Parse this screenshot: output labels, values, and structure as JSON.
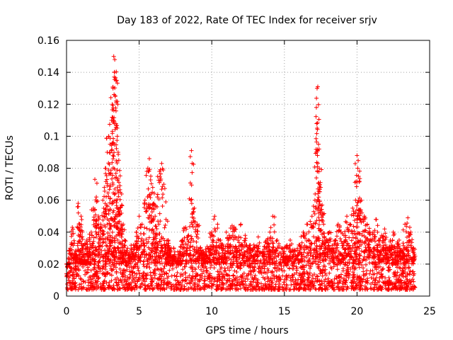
{
  "chart_data": {
    "type": "scatter",
    "title": "Day 183 of 2022, Rate Of TEC Index for receiver srjv",
    "xlabel": "GPS time / hours",
    "ylabel": "ROTI / TECUs",
    "xlim": [
      0,
      25
    ],
    "ylim": [
      0,
      0.16
    ],
    "xticks": [
      0,
      5,
      10,
      15,
      20,
      25
    ],
    "xtick_labels": [
      "0",
      "5",
      "10",
      "15",
      "20",
      "25"
    ],
    "yticks": [
      0,
      0.02,
      0.04,
      0.06,
      0.08,
      0.1,
      0.12,
      0.14,
      0.16
    ],
    "ytick_labels": [
      "0",
      "0.02",
      "0.04",
      "0.06",
      "0.08",
      "0.1",
      "0.12",
      "0.14",
      "0.16"
    ],
    "grid": true,
    "marker": "+",
    "series_color": "#ff0000",
    "series": [
      {
        "name": "ROTI",
        "x": [
          0.0,
          0.1,
          0.25,
          0.4,
          0.6,
          0.8,
          0.9,
          1.0,
          1.1,
          1.25,
          1.4,
          1.55,
          1.7,
          1.85,
          1.95,
          2.05,
          2.2,
          2.35,
          2.5,
          2.6,
          2.7,
          2.8,
          2.9,
          3.0,
          3.05,
          3.1,
          3.15,
          3.2,
          3.25,
          3.3,
          3.32,
          3.35,
          3.4,
          3.45,
          3.5,
          3.55,
          3.6,
          3.7,
          3.8,
          3.9,
          4.0,
          4.2,
          4.4,
          4.6,
          4.8,
          5.0,
          5.2,
          5.4,
          5.6,
          5.7,
          5.8,
          5.9,
          6.0,
          6.1,
          6.25,
          6.4,
          6.55,
          6.7,
          6.85,
          7.0,
          7.2,
          7.4,
          7.6,
          7.8,
          8.0,
          8.2,
          8.4,
          8.6,
          8.65,
          8.8,
          9.0,
          9.2,
          9.4,
          9.6,
          9.8,
          10.0,
          10.2,
          10.4,
          10.6,
          10.8,
          11.0,
          11.2,
          11.4,
          11.6,
          11.8,
          12.0,
          12.3,
          12.6,
          12.9,
          13.2,
          13.5,
          13.8,
          14.0,
          14.2,
          14.5,
          14.8,
          15.1,
          15.4,
          15.7,
          16.0,
          16.3,
          16.6,
          16.9,
          17.1,
          17.2,
          17.25,
          17.3,
          17.35,
          17.4,
          17.5,
          17.6,
          17.7,
          17.9,
          18.1,
          18.3,
          18.5,
          18.7,
          18.9,
          19.1,
          19.3,
          19.5,
          19.7,
          19.9,
          20.0,
          20.05,
          20.1,
          20.2,
          20.3,
          20.5,
          20.7,
          20.9,
          21.1,
          21.3,
          21.5,
          21.7,
          21.9,
          22.1,
          22.3,
          22.5,
          22.7,
          22.9,
          23.1,
          23.3,
          23.5,
          23.7,
          23.9,
          24.0
        ],
        "y": [
          0.014,
          0.02,
          0.03,
          0.043,
          0.025,
          0.058,
          0.045,
          0.05,
          0.03,
          0.022,
          0.035,
          0.028,
          0.04,
          0.055,
          0.073,
          0.062,
          0.05,
          0.045,
          0.06,
          0.068,
          0.08,
          0.09,
          0.1,
          0.095,
          0.077,
          0.11,
          0.12,
          0.13,
          0.15,
          0.14,
          0.148,
          0.125,
          0.108,
          0.135,
          0.1,
          0.09,
          0.085,
          0.065,
          0.057,
          0.045,
          0.035,
          0.03,
          0.025,
          0.032,
          0.04,
          0.05,
          0.045,
          0.06,
          0.08,
          0.086,
          0.075,
          0.065,
          0.058,
          0.05,
          0.062,
          0.078,
          0.083,
          0.07,
          0.048,
          0.035,
          0.03,
          0.025,
          0.022,
          0.028,
          0.035,
          0.043,
          0.038,
          0.091,
          0.083,
          0.055,
          0.045,
          0.03,
          0.028,
          0.025,
          0.03,
          0.04,
          0.05,
          0.045,
          0.035,
          0.03,
          0.04,
          0.038,
          0.044,
          0.042,
          0.035,
          0.045,
          0.038,
          0.03,
          0.032,
          0.037,
          0.028,
          0.035,
          0.04,
          0.05,
          0.035,
          0.03,
          0.025,
          0.035,
          0.028,
          0.032,
          0.04,
          0.045,
          0.05,
          0.06,
          0.118,
          0.13,
          0.131,
          0.095,
          0.08,
          0.068,
          0.057,
          0.045,
          0.035,
          0.04,
          0.03,
          0.035,
          0.045,
          0.04,
          0.038,
          0.05,
          0.045,
          0.055,
          0.06,
          0.088,
          0.08,
          0.075,
          0.054,
          0.06,
          0.05,
          0.045,
          0.04,
          0.04,
          0.048,
          0.035,
          0.038,
          0.042,
          0.03,
          0.035,
          0.04,
          0.03,
          0.035,
          0.028,
          0.045,
          0.049,
          0.04,
          0.03,
          0.025
        ]
      }
    ]
  }
}
